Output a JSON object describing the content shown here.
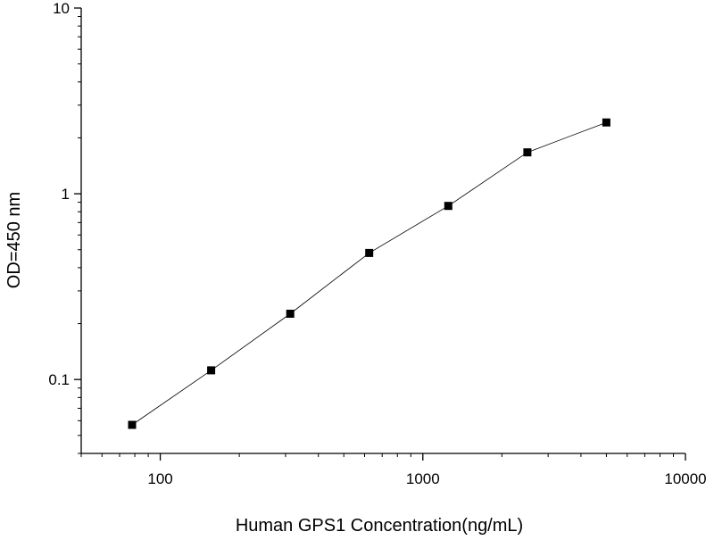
{
  "chart_data": {
    "type": "scatter",
    "title": "",
    "xlabel": "Human GPS1 Concentration(ng/mL)",
    "ylabel": "OD=450 nm",
    "x_scale": "log",
    "y_scale": "log",
    "xlim": [
      50,
      10000
    ],
    "ylim": [
      0.04,
      10
    ],
    "x_ticks": [
      {
        "value": 100,
        "label": "100"
      },
      {
        "value": 1000,
        "label": "1000"
      },
      {
        "value": 10000,
        "label": "10000"
      }
    ],
    "y_ticks": [
      {
        "value": 0.1,
        "label": "0.1"
      },
      {
        "value": 1,
        "label": "1"
      },
      {
        "value": 10,
        "label": "10"
      }
    ],
    "grid": false,
    "legend": "none",
    "series": [
      {
        "x": [
          78.125,
          156.25,
          312.5,
          625,
          1250,
          2500,
          5000
        ],
        "y": [
          0.057,
          0.112,
          0.226,
          0.48,
          0.86,
          1.67,
          2.42
        ],
        "marker": "square",
        "line": true,
        "color": "#000000"
      }
    ]
  }
}
